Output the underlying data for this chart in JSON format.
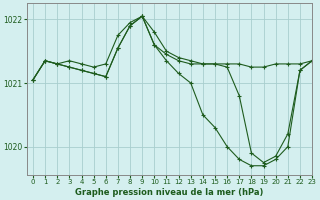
{
  "title": "Graphe pression niveau de la mer (hPa)",
  "background_color": "#d4efef",
  "grid_color": "#a8cece",
  "line_color": "#1e5c1e",
  "xlim": [
    -0.5,
    23
  ],
  "ylim": [
    1019.55,
    1022.25
  ],
  "yticks": [
    1020,
    1021,
    1022
  ],
  "xticks": [
    0,
    1,
    2,
    3,
    4,
    5,
    6,
    7,
    8,
    9,
    10,
    11,
    12,
    13,
    14,
    15,
    16,
    17,
    18,
    19,
    20,
    21,
    22,
    23
  ],
  "series": [
    [
      1021.05,
      1021.35,
      1021.3,
      1021.35,
      1021.3,
      1021.25,
      1021.3,
      1021.75,
      1021.95,
      1022.05,
      1021.8,
      1021.5,
      1021.4,
      1021.35,
      1021.3,
      1021.3,
      1021.3,
      1021.3,
      1021.25,
      1021.25,
      1021.3,
      1021.3,
      1021.3,
      1021.35
    ],
    [
      1021.05,
      1021.35,
      1021.3,
      1021.25,
      1021.2,
      1021.15,
      1021.1,
      1021.55,
      1021.9,
      1022.05,
      1021.6,
      1021.35,
      1021.15,
      1021.0,
      1020.5,
      1020.3,
      1020.0,
      1019.8,
      1019.7,
      1019.7,
      1019.8,
      1020.0,
      1021.2,
      1021.35
    ],
    [
      1021.05,
      1021.35,
      1021.3,
      1021.25,
      1021.2,
      1021.15,
      1021.1,
      1021.55,
      1021.9,
      1022.05,
      1021.6,
      1021.45,
      1021.35,
      1021.3,
      1021.3,
      1021.3,
      1021.25,
      1020.8,
      1019.9,
      1019.75,
      1019.85,
      1020.2,
      1021.2,
      1021.35
    ]
  ]
}
